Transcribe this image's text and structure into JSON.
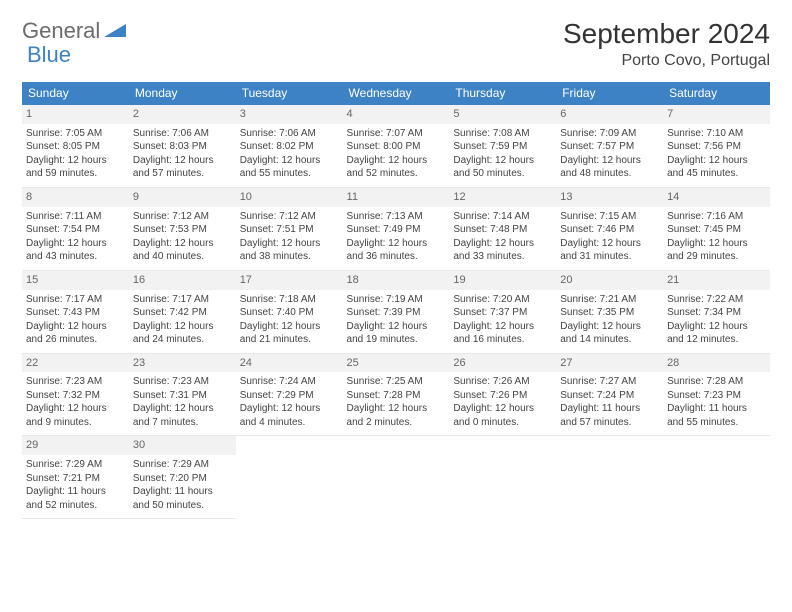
{
  "logo": {
    "text1": "General",
    "text2": "Blue",
    "tri_color": "#3d82c4"
  },
  "header": {
    "month_title": "September 2024",
    "location": "Porto Covo, Portugal"
  },
  "calendar": {
    "day_headers": [
      "Sunday",
      "Monday",
      "Tuesday",
      "Wednesday",
      "Thursday",
      "Friday",
      "Saturday"
    ],
    "header_bg": "#3d82c4",
    "header_fg": "#ffffff",
    "row_divider_color": "#3d82c4",
    "daynum_bg": "#f2f2f2",
    "cell_font_size": 10,
    "days": [
      {
        "n": "1",
        "sunrise": "7:05 AM",
        "sunset": "8:05 PM",
        "day_h": "12",
        "day_m": "59"
      },
      {
        "n": "2",
        "sunrise": "7:06 AM",
        "sunset": "8:03 PM",
        "day_h": "12",
        "day_m": "57"
      },
      {
        "n": "3",
        "sunrise": "7:06 AM",
        "sunset": "8:02 PM",
        "day_h": "12",
        "day_m": "55"
      },
      {
        "n": "4",
        "sunrise": "7:07 AM",
        "sunset": "8:00 PM",
        "day_h": "12",
        "day_m": "52"
      },
      {
        "n": "5",
        "sunrise": "7:08 AM",
        "sunset": "7:59 PM",
        "day_h": "12",
        "day_m": "50"
      },
      {
        "n": "6",
        "sunrise": "7:09 AM",
        "sunset": "7:57 PM",
        "day_h": "12",
        "day_m": "48"
      },
      {
        "n": "7",
        "sunrise": "7:10 AM",
        "sunset": "7:56 PM",
        "day_h": "12",
        "day_m": "45"
      },
      {
        "n": "8",
        "sunrise": "7:11 AM",
        "sunset": "7:54 PM",
        "day_h": "12",
        "day_m": "43"
      },
      {
        "n": "9",
        "sunrise": "7:12 AM",
        "sunset": "7:53 PM",
        "day_h": "12",
        "day_m": "40"
      },
      {
        "n": "10",
        "sunrise": "7:12 AM",
        "sunset": "7:51 PM",
        "day_h": "12",
        "day_m": "38"
      },
      {
        "n": "11",
        "sunrise": "7:13 AM",
        "sunset": "7:49 PM",
        "day_h": "12",
        "day_m": "36"
      },
      {
        "n": "12",
        "sunrise": "7:14 AM",
        "sunset": "7:48 PM",
        "day_h": "12",
        "day_m": "33"
      },
      {
        "n": "13",
        "sunrise": "7:15 AM",
        "sunset": "7:46 PM",
        "day_h": "12",
        "day_m": "31"
      },
      {
        "n": "14",
        "sunrise": "7:16 AM",
        "sunset": "7:45 PM",
        "day_h": "12",
        "day_m": "29"
      },
      {
        "n": "15",
        "sunrise": "7:17 AM",
        "sunset": "7:43 PM",
        "day_h": "12",
        "day_m": "26"
      },
      {
        "n": "16",
        "sunrise": "7:17 AM",
        "sunset": "7:42 PM",
        "day_h": "12",
        "day_m": "24"
      },
      {
        "n": "17",
        "sunrise": "7:18 AM",
        "sunset": "7:40 PM",
        "day_h": "12",
        "day_m": "21"
      },
      {
        "n": "18",
        "sunrise": "7:19 AM",
        "sunset": "7:39 PM",
        "day_h": "12",
        "day_m": "19"
      },
      {
        "n": "19",
        "sunrise": "7:20 AM",
        "sunset": "7:37 PM",
        "day_h": "12",
        "day_m": "16"
      },
      {
        "n": "20",
        "sunrise": "7:21 AM",
        "sunset": "7:35 PM",
        "day_h": "12",
        "day_m": "14"
      },
      {
        "n": "21",
        "sunrise": "7:22 AM",
        "sunset": "7:34 PM",
        "day_h": "12",
        "day_m": "12"
      },
      {
        "n": "22",
        "sunrise": "7:23 AM",
        "sunset": "7:32 PM",
        "day_h": "12",
        "day_m": "9"
      },
      {
        "n": "23",
        "sunrise": "7:23 AM",
        "sunset": "7:31 PM",
        "day_h": "12",
        "day_m": "7"
      },
      {
        "n": "24",
        "sunrise": "7:24 AM",
        "sunset": "7:29 PM",
        "day_h": "12",
        "day_m": "4"
      },
      {
        "n": "25",
        "sunrise": "7:25 AM",
        "sunset": "7:28 PM",
        "day_h": "12",
        "day_m": "2"
      },
      {
        "n": "26",
        "sunrise": "7:26 AM",
        "sunset": "7:26 PM",
        "day_h": "12",
        "day_m": "0"
      },
      {
        "n": "27",
        "sunrise": "7:27 AM",
        "sunset": "7:24 PM",
        "day_h": "11",
        "day_m": "57"
      },
      {
        "n": "28",
        "sunrise": "7:28 AM",
        "sunset": "7:23 PM",
        "day_h": "11",
        "day_m": "55"
      },
      {
        "n": "29",
        "sunrise": "7:29 AM",
        "sunset": "7:21 PM",
        "day_h": "11",
        "day_m": "52"
      },
      {
        "n": "30",
        "sunrise": "7:29 AM",
        "sunset": "7:20 PM",
        "day_h": "11",
        "day_m": "50"
      }
    ],
    "labels": {
      "sunrise": "Sunrise:",
      "sunset": "Sunset:",
      "daylight_pre": "Daylight:",
      "hours_word": "hours",
      "and_word": "and",
      "minutes_word": "minutes."
    }
  }
}
